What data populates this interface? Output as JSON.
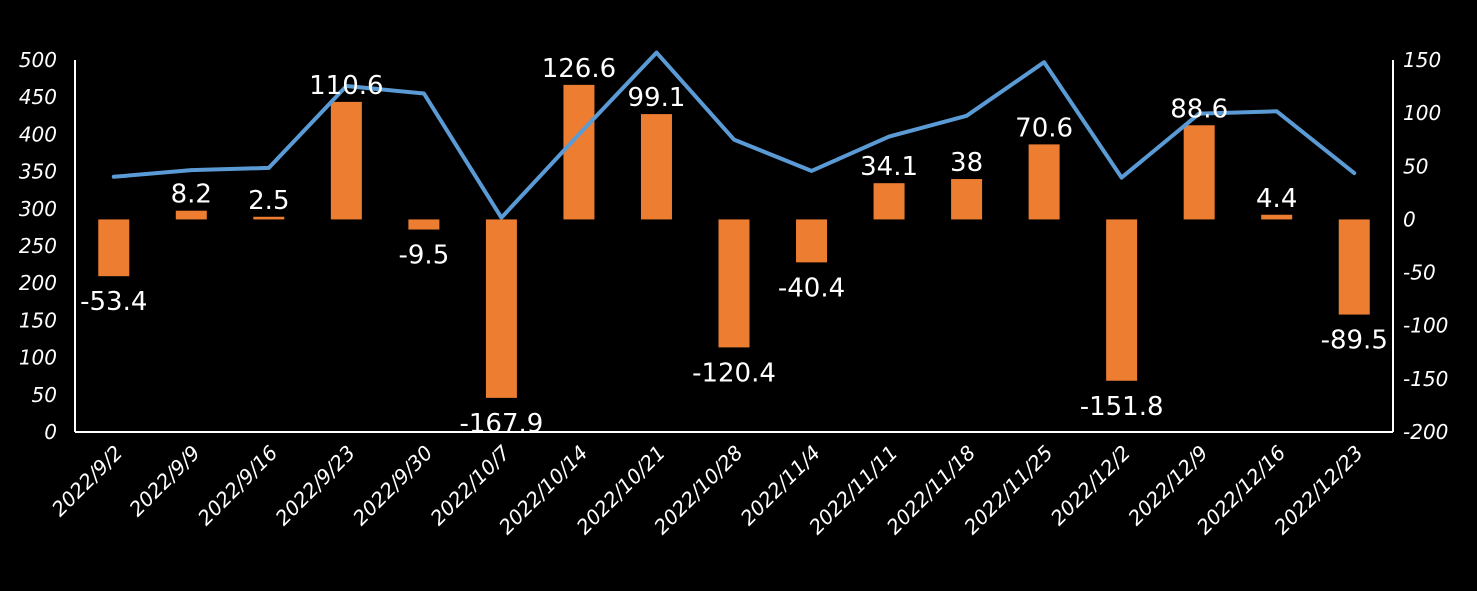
{
  "chart_data": {
    "type": "bar+line",
    "categories": [
      "2022/9/2",
      "2022/9/9",
      "2022/9/16",
      "2022/9/23",
      "2022/9/30",
      "2022/10/7",
      "2022/10/14",
      "2022/10/21",
      "2022/10/28",
      "2022/11/4",
      "2022/11/11",
      "2022/11/18",
      "2022/11/25",
      "2022/12/2",
      "2022/12/9",
      "2022/12/16",
      "2022/12/23"
    ],
    "bar_series": {
      "axis": "right",
      "color": "#ED7D31",
      "values": [
        -53.4,
        8.2,
        2.5,
        110.6,
        -9.5,
        -167.9,
        126.6,
        99.1,
        -120.4,
        -40.4,
        34.1,
        38,
        70.6,
        -151.8,
        88.6,
        4.4,
        -89.5
      ],
      "labels": [
        "-53.4",
        "8.2",
        "2.5",
        "110.6",
        "-9.5",
        "-167.9",
        "126.6",
        "99.1",
        "-120.4",
        "-40.4",
        "34.1",
        "38",
        "70.6",
        "-151.8",
        "88.6",
        "4.4",
        "-89.5"
      ]
    },
    "line_series": {
      "axis": "left",
      "color": "#5B9BD5",
      "values": [
        343,
        352,
        355,
        465,
        455,
        288,
        400,
        510,
        393,
        351,
        397,
        425,
        497,
        342,
        428,
        431,
        348
      ]
    },
    "left_axis": {
      "ylim": [
        0,
        500
      ],
      "ticks": [
        "0",
        "50",
        "100",
        "150",
        "200",
        "250",
        "300",
        "350",
        "400",
        "450",
        "500"
      ]
    },
    "right_axis": {
      "ylim": [
        -200,
        150
      ],
      "ticks": [
        "-200",
        "-150",
        "-100",
        "-50",
        "0",
        "50",
        "100",
        "150"
      ]
    },
    "grid": false,
    "background": "#000000",
    "text_color": "#FFFFFF"
  }
}
